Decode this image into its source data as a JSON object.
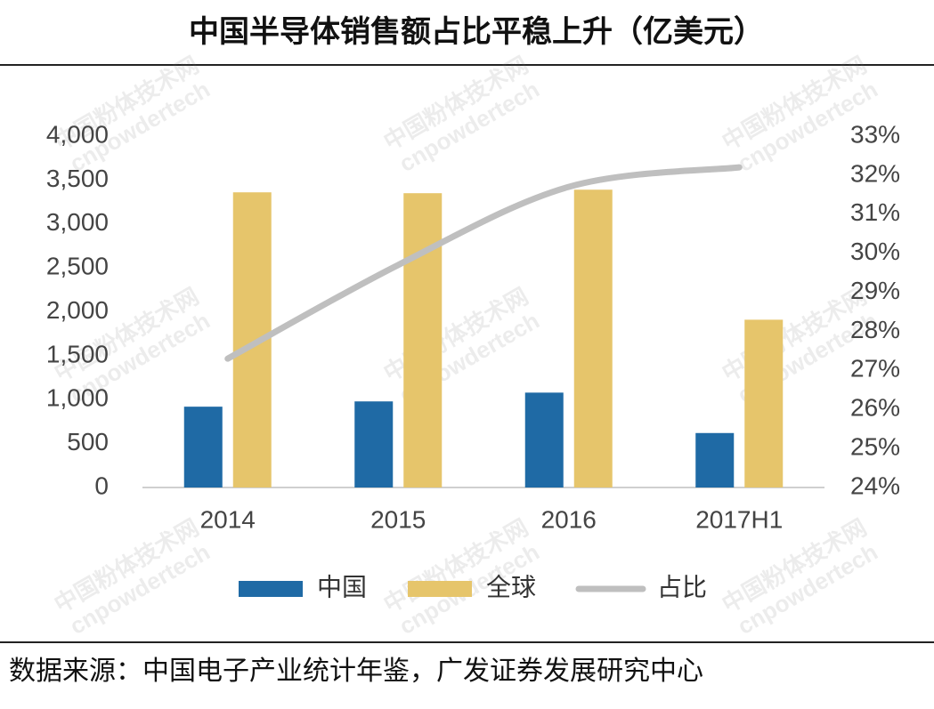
{
  "chart_data": {
    "type": "bar_line",
    "title": "中国半导体销售额占比平稳上升（亿美元）",
    "categories": [
      "2014",
      "2015",
      "2016",
      "2017H1"
    ],
    "series": [
      {
        "name": "中国",
        "color": "#1f6aa5",
        "values": [
          920,
          980,
          1080,
          620
        ]
      },
      {
        "name": "全球",
        "color": "#e6c56b",
        "values": [
          3360,
          3350,
          3390,
          1910
        ]
      },
      {
        "name": "占比",
        "color": "#bfbfbf",
        "axis": "y2",
        "values": [
          27.3,
          29.7,
          31.7,
          32.2
        ]
      }
    ],
    "ylim": [
      0,
      4000
    ],
    "yticks": [
      0,
      500,
      {
        "value": 1000,
        "label": "1,000"
      },
      {
        "value": 1500,
        "label": "1,500"
      },
      {
        "value": 2000,
        "label": "2,000"
      },
      {
        "value": 2500,
        "label": "2,500"
      },
      {
        "value": 3000,
        "label": "3,000"
      },
      {
        "value": 3500,
        "label": "3,500"
      },
      {
        "value": 4000,
        "label": "4,000"
      }
    ],
    "y2lim": [
      24,
      33
    ],
    "y2ticks": [
      {
        "value": 24,
        "label": "24%"
      },
      {
        "value": 25,
        "label": "25%"
      },
      {
        "value": 26,
        "label": "26%"
      },
      {
        "value": 27,
        "label": "27%"
      },
      {
        "value": 28,
        "label": "28%"
      },
      {
        "value": 29,
        "label": "29%"
      },
      {
        "value": 30,
        "label": "30%"
      },
      {
        "value": 31,
        "label": "31%"
      },
      {
        "value": 32,
        "label": "32%"
      },
      {
        "value": 33,
        "label": "33%"
      }
    ],
    "legend": "bottom",
    "source": "数据来源：中国电子产业统计年鉴，广发证券发展研究中心",
    "watermark": [
      "中国粉体技术网",
      "cnpowdertech"
    ]
  }
}
